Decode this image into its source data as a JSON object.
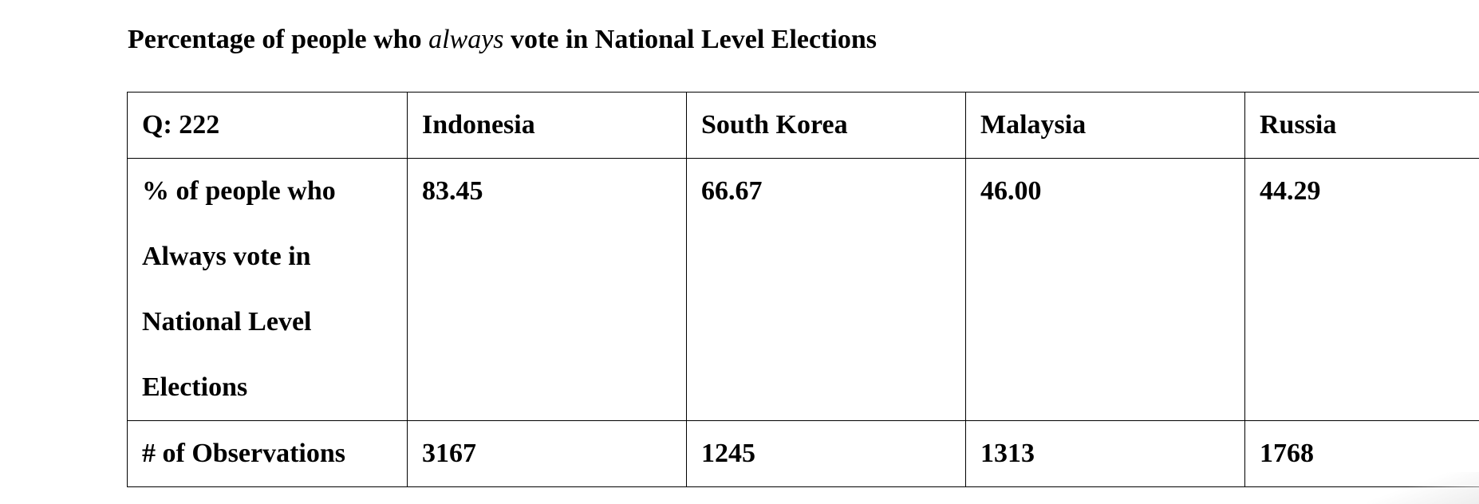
{
  "document": {
    "title_part1": "Percentage of people who ",
    "title_italic": "always",
    "title_part2": " vote in National Level Elections"
  },
  "table": {
    "header": {
      "question": "Q: 222",
      "countries": [
        "Indonesia",
        "South Korea",
        "Malaysia",
        "Russia"
      ]
    },
    "rows": {
      "percent": {
        "label_lines": [
          "% of people who",
          "Always vote in",
          "National Level",
          "Elections"
        ],
        "values": [
          "83.45",
          "66.67",
          "46.00",
          "44.29"
        ]
      },
      "observations": {
        "label": "# of Observations",
        "values": [
          "3167",
          "1245",
          "1313",
          "1768"
        ]
      }
    }
  }
}
